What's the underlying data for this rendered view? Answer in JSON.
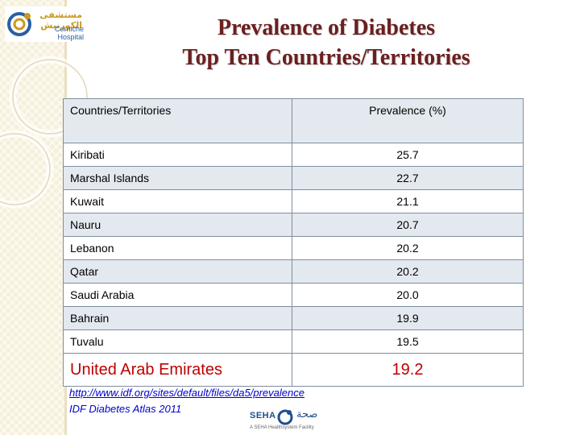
{
  "logo": {
    "arabic_text": "مستشفى الكورنيش",
    "english_text": "Corniche Hospital"
  },
  "title": {
    "line1": "Prevalence of Diabetes",
    "line2": "Top Ten Countries/Territories"
  },
  "table": {
    "headers": [
      "Countries/Territories",
      "Prevalence (%)"
    ],
    "rows": [
      {
        "country": "Kiribati",
        "prevalence": "25.7"
      },
      {
        "country": "Marshal Islands",
        "prevalence": "22.7"
      },
      {
        "country": "Kuwait",
        "prevalence": "21.1"
      },
      {
        "country": "Nauru",
        "prevalence": "20.7"
      },
      {
        "country": "Lebanon",
        "prevalence": "20.2"
      },
      {
        "country": "Qatar",
        "prevalence": "20.2"
      },
      {
        "country": "Saudi Arabia",
        "prevalence": "20.0"
      },
      {
        "country": "Bahrain",
        "prevalence": "19.9"
      },
      {
        "country": "Tuvalu",
        "prevalence": "19.5"
      },
      {
        "country": "United Arab Emirates",
        "prevalence": "19.2"
      }
    ],
    "highlight_color": "#c00000"
  },
  "source": {
    "link": "http://www.idf.org/sites/default/files/da5/prevalence",
    "note": "IDF Diabetes Atlas 2011"
  },
  "footer_logo": {
    "latin": "SEHA",
    "arabic": "صحة",
    "tagline": "A SEHA Healthsystem Facility"
  },
  "colors": {
    "title": "#6b1f1f",
    "link": "#0000cc",
    "table_stripe": "#e3e9ef",
    "sidebar": "#f6efd9"
  }
}
